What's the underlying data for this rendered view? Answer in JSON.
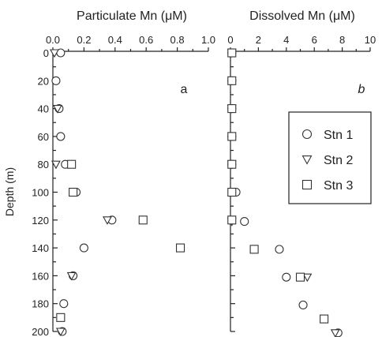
{
  "chart_data": [
    {
      "type": "scatter",
      "title": "Particulate Mn (μM)",
      "panel_label": "a",
      "x_axis_position": "top",
      "xlim": [
        0,
        1.0
      ],
      "x_ticks": [
        0,
        0.2,
        0.4,
        0.6,
        0.8,
        1.0
      ],
      "x_tick_labels": [
        "0.0",
        "0.2",
        "0.4",
        "0.6",
        "0.8",
        "1.0"
      ],
      "ylabel": "Depth (m)",
      "ylim": [
        0,
        200
      ],
      "y_inverted": true,
      "y_ticks": [
        0,
        20,
        40,
        60,
        80,
        100,
        120,
        140,
        160,
        180,
        200
      ],
      "y_tick_labels": [
        "0",
        "20",
        "40",
        "60",
        "80",
        "100",
        "120",
        "140",
        "160",
        "180",
        "200"
      ],
      "grid": false,
      "series": [
        {
          "name": "Stn 1",
          "marker": "circle",
          "points": [
            [
              0.05,
              0
            ],
            [
              0.02,
              20
            ],
            [
              0.04,
              40
            ],
            [
              0.05,
              60
            ],
            [
              0.08,
              80
            ],
            [
              0.15,
              100
            ],
            [
              0.38,
              120
            ],
            [
              0.2,
              140
            ],
            [
              0.13,
              160
            ],
            [
              0.07,
              180
            ],
            [
              0.06,
              200
            ]
          ]
        },
        {
          "name": "Stn 2",
          "marker": "triangle-down",
          "points": [
            [
              0.01,
              0
            ],
            [
              0.03,
              40
            ],
            [
              0.02,
              80
            ],
            [
              0.35,
              120
            ],
            [
              0.12,
              160
            ],
            [
              0.05,
              200
            ]
          ]
        },
        {
          "name": "Stn 3",
          "marker": "square",
          "points": [
            [
              0.12,
              80
            ],
            [
              0.13,
              100
            ],
            [
              0.58,
              120
            ],
            [
              0.82,
              140
            ],
            [
              0.05,
              190
            ]
          ]
        }
      ]
    },
    {
      "type": "scatter",
      "title": "Dissolved Mn (μM)",
      "panel_label": "b",
      "x_axis_position": "top",
      "xlim": [
        0,
        10
      ],
      "x_ticks": [
        0,
        2,
        4,
        6,
        8,
        10
      ],
      "x_tick_labels": [
        "0",
        "2",
        "4",
        "6",
        "8",
        "10"
      ],
      "ylim": [
        0,
        200
      ],
      "y_inverted": true,
      "grid": false,
      "legend": {
        "position": "right",
        "entries": [
          "Stn 1",
          "Stn 2",
          "Stn 3"
        ]
      },
      "series": [
        {
          "name": "Stn 1",
          "marker": "circle",
          "points": [
            [
              0.1,
              0
            ],
            [
              0.1,
              20
            ],
            [
              0.1,
              40
            ],
            [
              0.1,
              60
            ],
            [
              0.1,
              80
            ],
            [
              0.4,
              100
            ],
            [
              1.0,
              121
            ],
            [
              3.5,
              141
            ],
            [
              4.0,
              161
            ],
            [
              5.2,
              181
            ],
            [
              7.7,
              201
            ]
          ]
        },
        {
          "name": "Stn 2",
          "marker": "triangle-down",
          "points": [
            [
              0.1,
              0
            ],
            [
              0.1,
              40
            ],
            [
              0.1,
              80
            ],
            [
              0.1,
              121
            ],
            [
              5.5,
              161
            ],
            [
              7.5,
              201
            ]
          ]
        },
        {
          "name": "Stn 3",
          "marker": "square",
          "points": [
            [
              0.1,
              0
            ],
            [
              0.1,
              20
            ],
            [
              0.1,
              40
            ],
            [
              0.1,
              60
            ],
            [
              0.1,
              80
            ],
            [
              0.1,
              100
            ],
            [
              0.1,
              120
            ],
            [
              1.7,
              141
            ],
            [
              5.0,
              161
            ],
            [
              6.7,
              191
            ]
          ]
        }
      ]
    }
  ]
}
